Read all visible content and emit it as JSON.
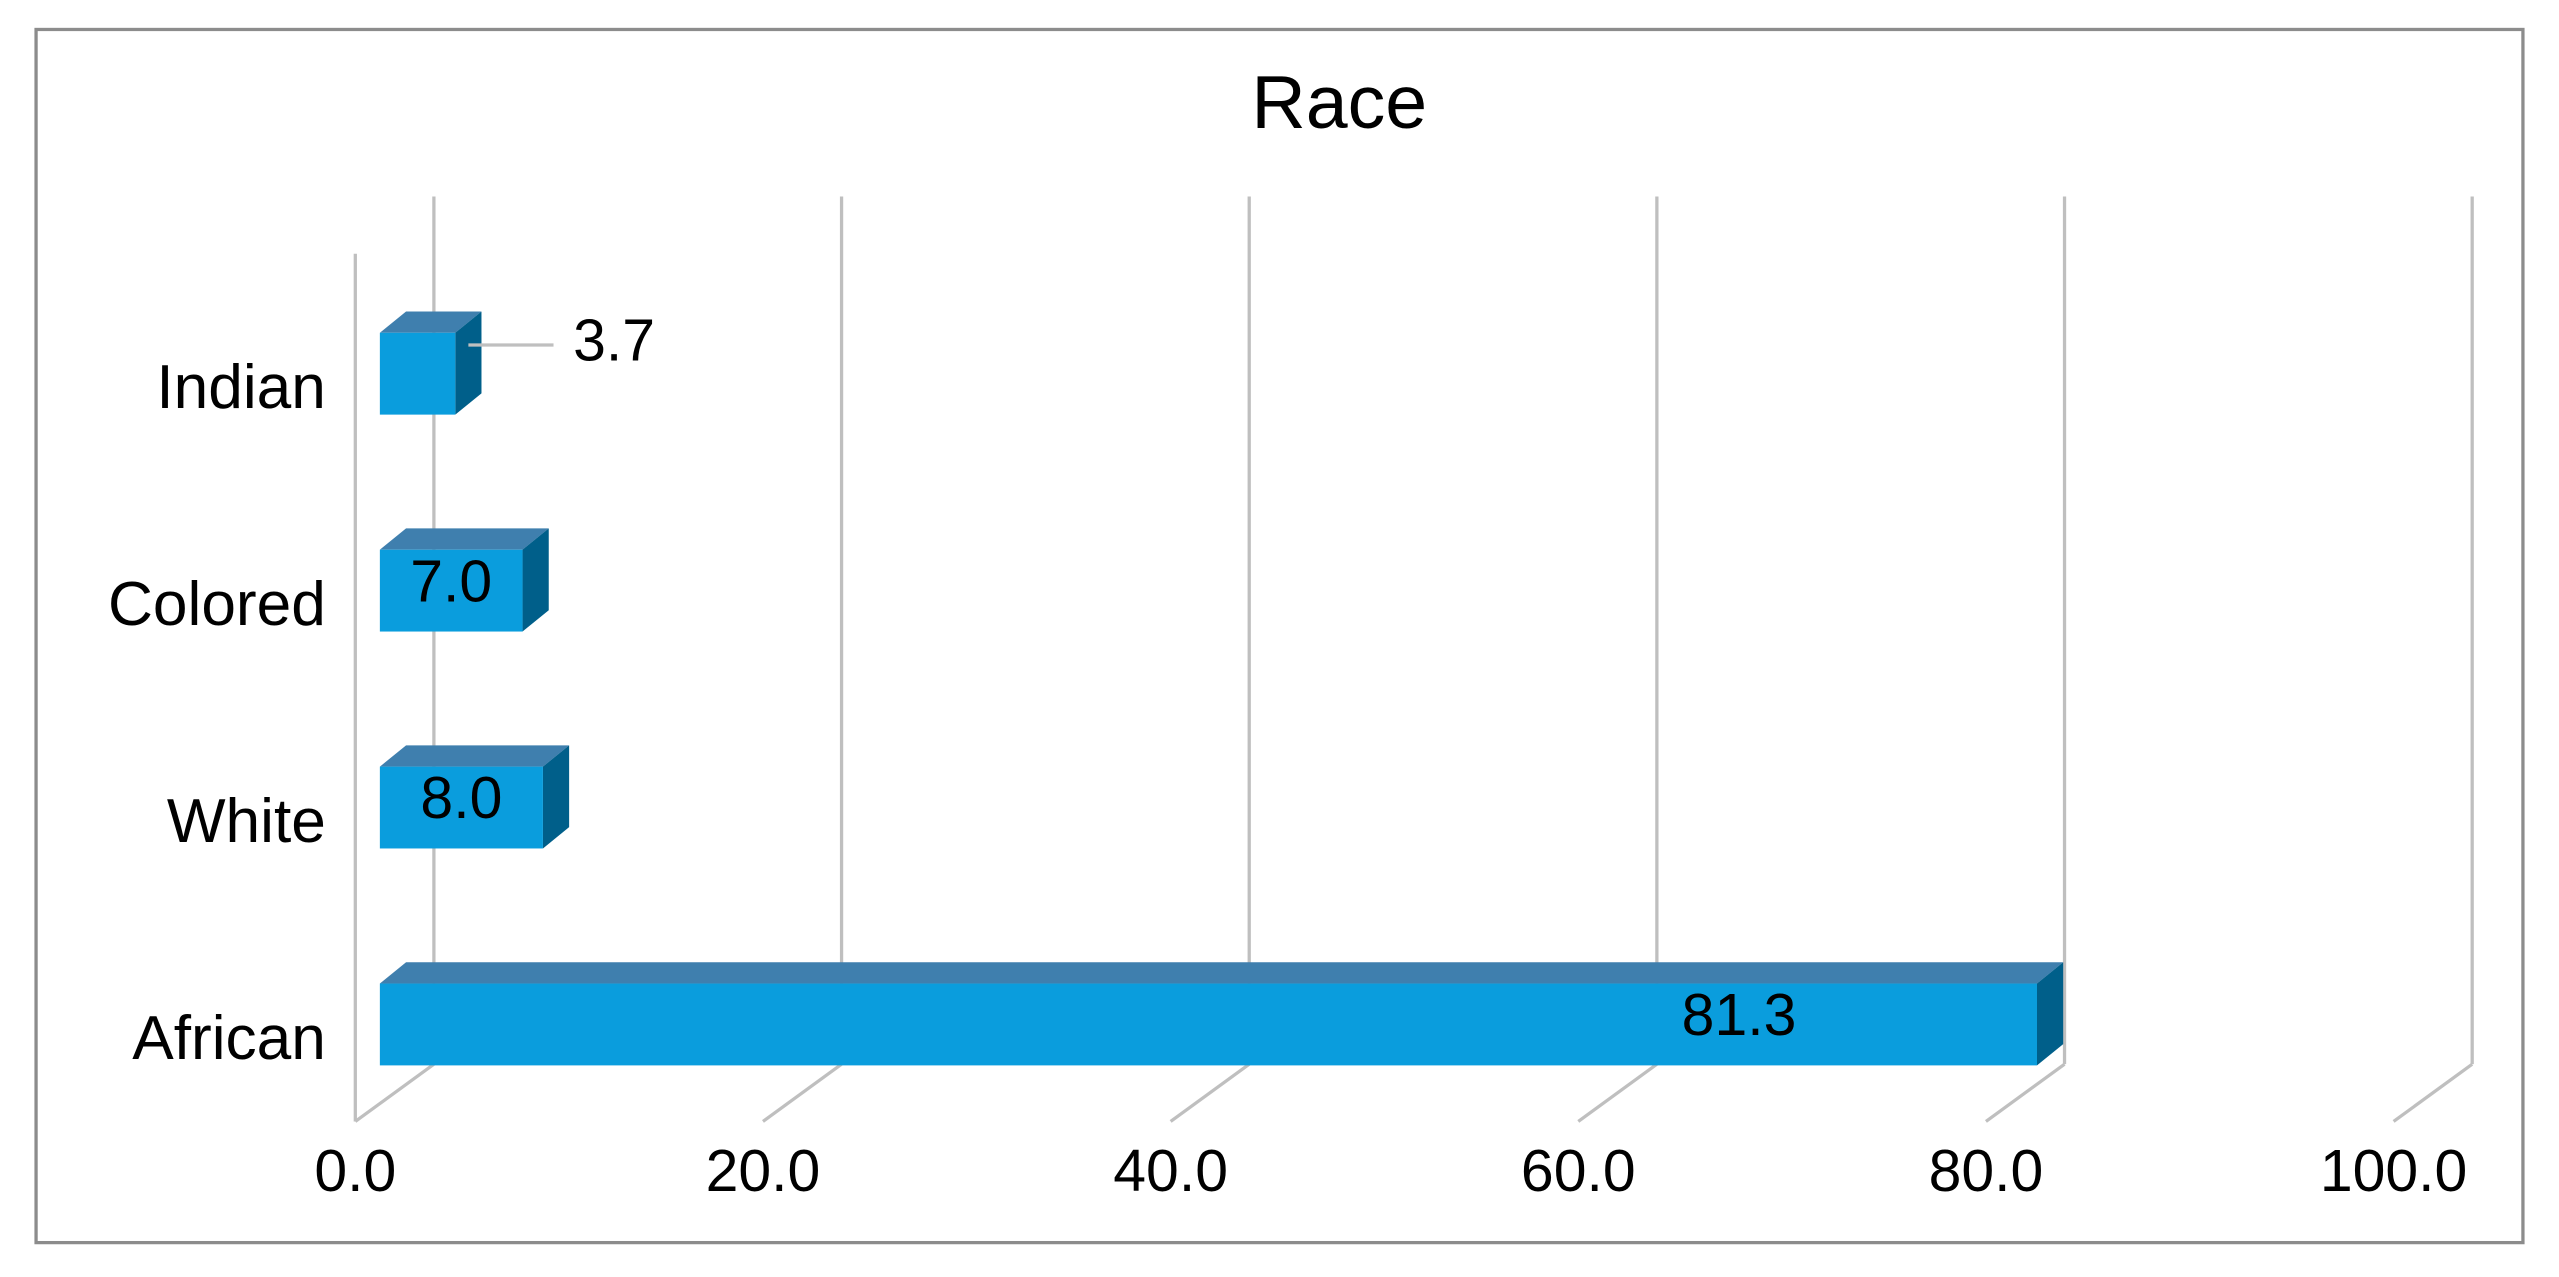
{
  "chart_data": {
    "type": "bar3d",
    "orientation": "horizontal",
    "title": "Race",
    "categories": [
      "African",
      "White",
      "Colored",
      "Indian"
    ],
    "values": [
      81.3,
      8.0,
      7.0,
      3.7
    ],
    "value_labels": [
      "81.3",
      "8.0",
      "7.0",
      "3.7"
    ],
    "color": "#0a9ddd",
    "xlim": [
      0,
      100
    ],
    "xticks": [
      {
        "value": 0,
        "label": "0.0"
      },
      {
        "value": 20,
        "label": "20.0"
      },
      {
        "value": 40,
        "label": "40.0"
      },
      {
        "value": 60,
        "label": "60.0"
      },
      {
        "value": 80,
        "label": "80.0"
      },
      {
        "value": 100,
        "label": "100.0"
      }
    ],
    "grid": true
  }
}
